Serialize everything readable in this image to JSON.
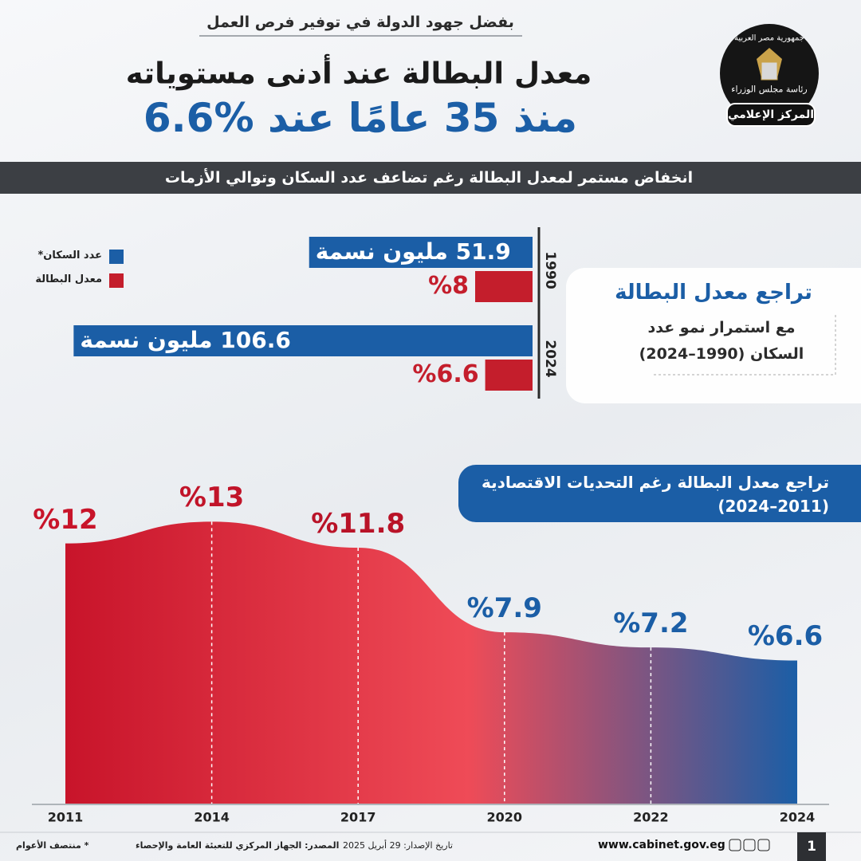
{
  "header": {
    "kicker": "بفضل جهود الدولة في توفير فرص العمل",
    "title": "معدل البطالة عند أدنى مستوياته",
    "subtitle": "منذ 35 عامًا عند %6.6"
  },
  "logo": {
    "country": "جمهورية مصر العربية",
    "cabinet": "رئاسة مجلس الوزراء",
    "center": "المركز الإعلامي"
  },
  "banner": "انخفاض مستمر لمعدل البطالة رغم تضاعف عدد السكان وتوالي الأزمات",
  "chart_data": [
    {
      "type": "bar",
      "orientation": "horizontal",
      "title": "تراجع معدل البطالة",
      "subtitle": "مع استمرار نمو عدد السكان (1990–2024)",
      "categories": [
        "1990",
        "2024"
      ],
      "series": [
        {
          "name": "عدد السكان*",
          "color": "#1b5ea6",
          "values": [
            51.9,
            106.6
          ],
          "value_labels": [
            "51.9 مليون نسمة",
            "106.6 مليون نسمة"
          ]
        },
        {
          "name": "معدل البطالة",
          "color": "#c41e2c",
          "values": [
            8,
            6.6
          ],
          "value_labels": [
            "%8",
            "%6.6"
          ]
        }
      ]
    },
    {
      "type": "area",
      "title": "تراجع معدل البطالة رغم التحديات الاقتصادية (2011–2024)",
      "categories": [
        "2011",
        "2014",
        "2017",
        "2020",
        "2022",
        "2024"
      ],
      "values": [
        12,
        13,
        11.8,
        7.9,
        7.2,
        6.6
      ],
      "value_labels": [
        "%12",
        "%13",
        "%11.8",
        "%7.9",
        "%7.2",
        "%6.6"
      ],
      "gradient": [
        "#c8142a",
        "#ef4b57",
        "#1b5ea6"
      ]
    }
  ],
  "footer": {
    "note": "* منتصف الأعوام",
    "source": "المصدر: الجهاز المركزي للتعبئة العامة والإحصاء",
    "date": "تاريخ الإصدار: 29 أبريل 2025",
    "website": "www.cabinet.gov.eg",
    "page": "1"
  }
}
